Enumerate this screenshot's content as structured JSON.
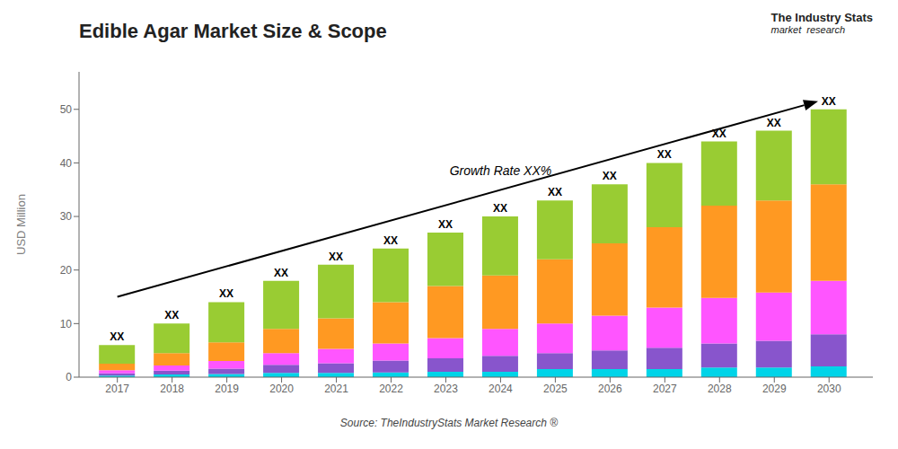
{
  "chart_data": {
    "type": "bar",
    "stacked": true,
    "title": "Edible Agar Market Size & Scope",
    "ylabel": "USD Million",
    "x": [
      2017,
      2018,
      2019,
      2020,
      2021,
      2022,
      2023,
      2024,
      2025,
      2026,
      2027,
      2028,
      2029,
      2030
    ],
    "xlim": [
      2016.3,
      2030.8
    ],
    "xticks": [
      2017,
      2018,
      2019,
      2020,
      2021,
      2022,
      2023,
      2024,
      2025,
      2026,
      2027,
      2028,
      2029,
      2030
    ],
    "ylim": [
      0,
      57
    ],
    "yticks": [
      0,
      10,
      20,
      30,
      40,
      50
    ],
    "grid": false,
    "series": [
      {
        "color": "#00d4e8",
        "values": [
          0.3,
          0.5,
          0.6,
          0.8,
          0.8,
          0.9,
          1.0,
          1.0,
          1.5,
          1.5,
          1.5,
          1.8,
          1.8,
          2.0
        ]
      },
      {
        "color": "#8855CC",
        "values": [
          0.4,
          0.7,
          1.0,
          1.5,
          1.8,
          2.2,
          2.5,
          3.0,
          3.0,
          3.5,
          4.0,
          4.5,
          5.0,
          6.0
        ]
      },
      {
        "color": "#FF55FF",
        "values": [
          0.6,
          1.0,
          1.4,
          2.2,
          2.7,
          3.2,
          3.8,
          5.0,
          5.5,
          6.5,
          7.5,
          8.5,
          9.0,
          10.0
        ]
      },
      {
        "color": "#FF9922",
        "values": [
          1.2,
          2.3,
          3.5,
          4.5,
          5.7,
          7.7,
          9.7,
          10.0,
          12.0,
          13.5,
          15.0,
          17.2,
          17.2,
          18.0
        ]
      },
      {
        "color": "#99CC33",
        "values": [
          3.5,
          5.5,
          7.5,
          9.0,
          10.0,
          10.0,
          10.0,
          11.0,
          11.0,
          11.0,
          12.0,
          12.0,
          13.0,
          14.0
        ]
      }
    ],
    "total_labels": [
      "XX",
      "XX",
      "XX",
      "XX",
      "XX",
      "XX",
      "XX",
      "XX",
      "XX",
      "XX",
      "XX",
      "XX",
      "XX",
      "XX"
    ],
    "annotations": [
      {
        "text": "Growth Rate XX%",
        "x": 2024.0,
        "y": 37.0
      }
    ],
    "arrows": [
      {
        "x_start": 2017.0,
        "y_start": 15.0,
        "x_end": 2029.8,
        "y_end": 51.5
      }
    ],
    "source": "Source: TheIndustryStats Market Research ®",
    "logo": [
      "The Industry Stats",
      "market  research"
    ]
  }
}
